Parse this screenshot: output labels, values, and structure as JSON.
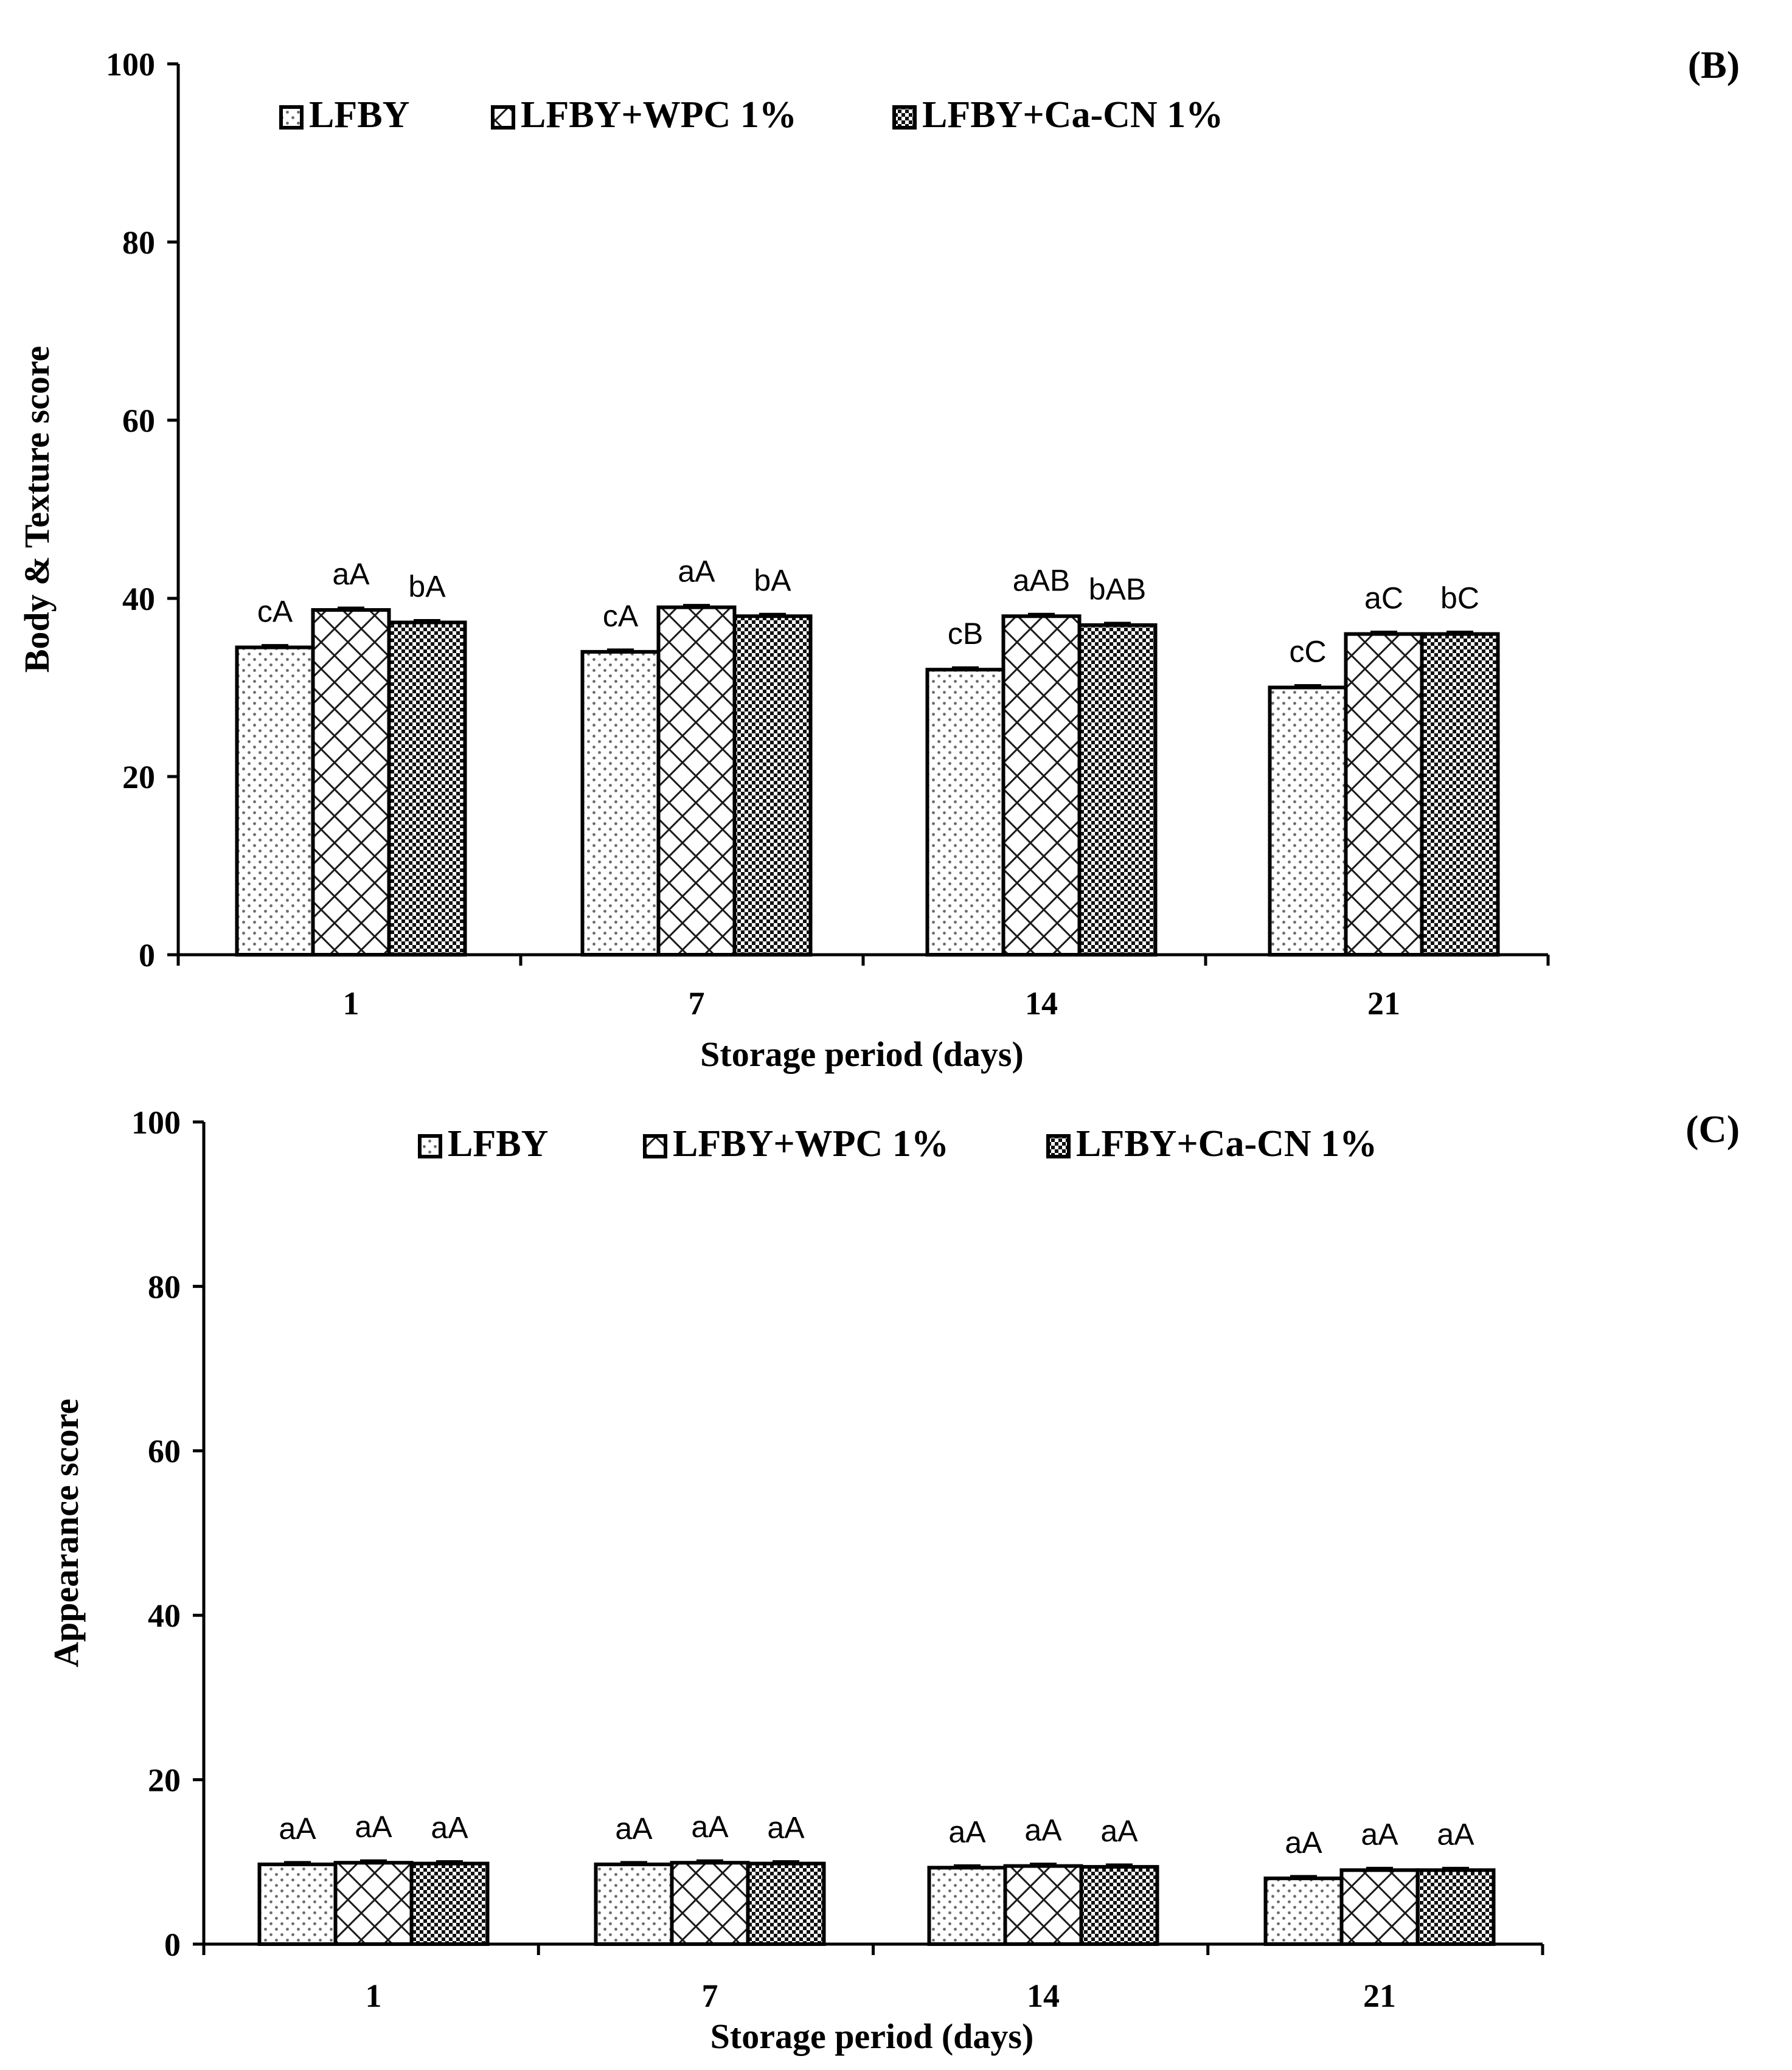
{
  "chart_data": [
    {
      "panel_label": "(B)",
      "type": "bar",
      "ylabel": "Body & Texture score",
      "xlabel": "Storage period (days)",
      "ylim": [
        0,
        100
      ],
      "yticks": [
        0,
        20,
        40,
        60,
        80,
        100
      ],
      "categories": [
        "1",
        "7",
        "14",
        "21"
      ],
      "legend_position": "top",
      "series": [
        {
          "name": "LFBY",
          "pattern": "dots",
          "values": [
            34.5,
            34.0,
            32.0,
            30.0
          ],
          "labels": [
            "cA",
            "cA",
            "cB",
            "cC"
          ]
        },
        {
          "name": "LFBY+WPC 1%",
          "pattern": "cross",
          "values": [
            38.7,
            39.0,
            38.0,
            36.0
          ],
          "labels": [
            "aA",
            "aA",
            "aAB",
            "aC"
          ]
        },
        {
          "name": "LFBY+Ca-CN 1%",
          "pattern": "checker",
          "values": [
            37.3,
            38.0,
            37.0,
            36.0
          ],
          "labels": [
            "bA",
            "bA",
            "bAB",
            "bC"
          ]
        }
      ]
    },
    {
      "panel_label": "(C)",
      "type": "bar",
      "ylabel": "Appearance score",
      "xlabel": "Storage period (days)",
      "ylim": [
        0,
        100
      ],
      "yticks": [
        0,
        20,
        40,
        60,
        80,
        100
      ],
      "categories": [
        "1",
        "7",
        "14",
        "21"
      ],
      "legend_position": "top",
      "series": [
        {
          "name": "LFBY",
          "pattern": "dots",
          "values": [
            9.7,
            9.7,
            9.3,
            8.0
          ],
          "labels": [
            "aA",
            "aA",
            "aA",
            "aA"
          ]
        },
        {
          "name": "LFBY+WPC 1%",
          "pattern": "cross",
          "values": [
            9.9,
            9.9,
            9.5,
            9.0
          ],
          "labels": [
            "aA",
            "aA",
            "aA",
            "aA"
          ]
        },
        {
          "name": "LFBY+Ca-CN 1%",
          "pattern": "checker",
          "values": [
            9.8,
            9.8,
            9.4,
            9.0
          ],
          "labels": [
            "aA",
            "aA",
            "aA",
            "aA"
          ]
        }
      ]
    }
  ]
}
